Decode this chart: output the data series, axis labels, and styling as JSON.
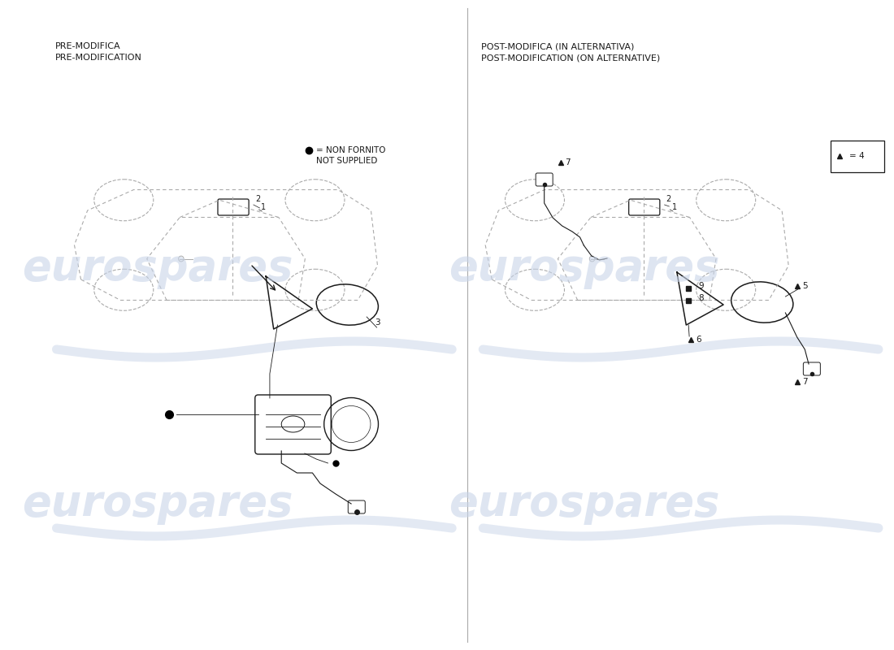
{
  "bg_color": "#ffffff",
  "title_left": "PRE-MODIFICA\nPRE-MODIFICATION",
  "title_right": "POST-MODIFICA (IN ALTERNATIVA)\nPOST-MODIFICATION (ON ALTERNATIVE)",
  "legend_text": "= NON FORNITO\nNOT SUPPLIED",
  "watermark": "eurospares",
  "text_color": "#1a1a1a",
  "line_color": "#1a1a1a",
  "car_color": "#aaaaaa",
  "watermark_color": "#c8d4e8"
}
